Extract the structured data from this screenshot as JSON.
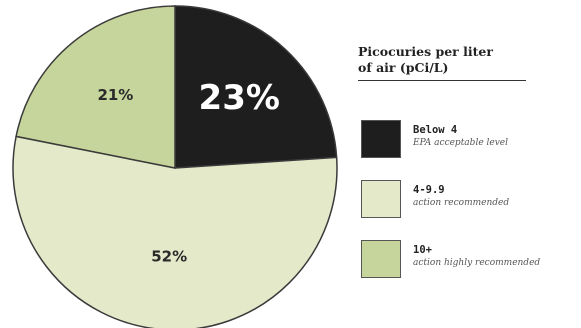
{
  "chart_data": {
    "type": "pie",
    "title": "",
    "legend_title": [
      "Picocuries per liter",
      "of air (pCi/L)"
    ],
    "legend_position": "right",
    "slices": [
      {
        "label": "Below 4",
        "description": "EPA acceptable level",
        "value": 23,
        "value_label": "23%",
        "color": "#1e1e1e",
        "text_color": "#ffffff"
      },
      {
        "label": "4-9.9",
        "description": "action recommended",
        "value": 52,
        "value_label": "52%",
        "color": "#e3e9c9",
        "text_color": "#2a2a2a"
      },
      {
        "label": "10+",
        "description": "action highly recommended",
        "value": 21,
        "value_label": "21%",
        "color": "#c6d59b",
        "text_color": "#2a2a2a"
      }
    ]
  }
}
